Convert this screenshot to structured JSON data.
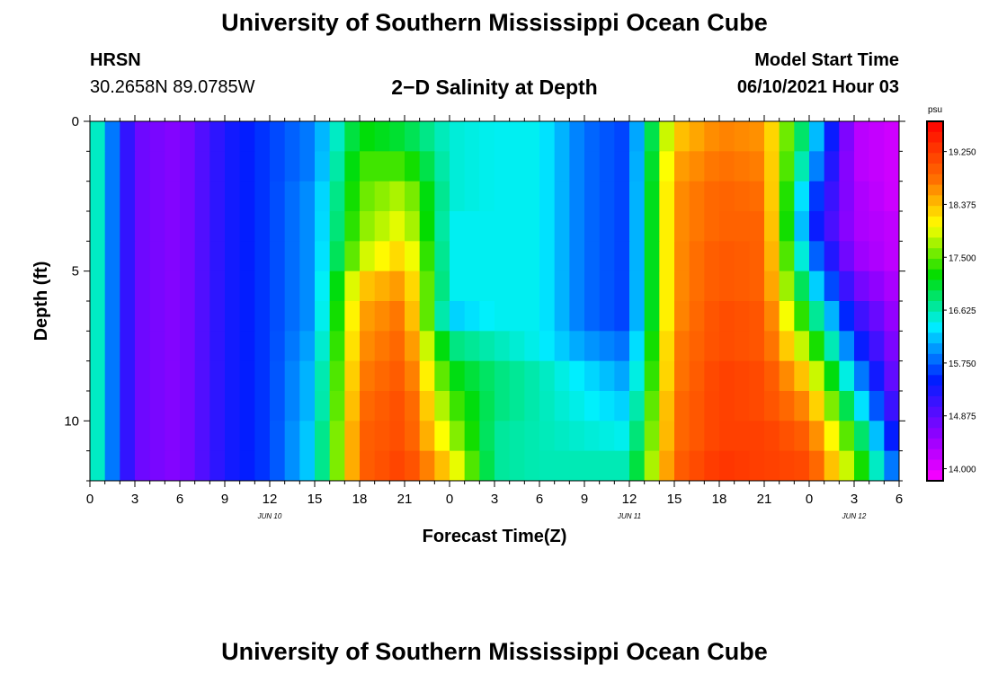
{
  "header": {
    "title": "University of Southern Mississippi Ocean Cube",
    "station": "HRSN",
    "coordinates": "30.2658N  89.0785W",
    "plot_title": "2−D Salinity at Depth",
    "model_label": "Model Start Time",
    "model_time": "06/10/2021 Hour 03"
  },
  "footer": {
    "title": "University of Southern Mississippi Ocean Cube"
  },
  "chart_data": {
    "type": "heatmap",
    "title": "2-D Salinity at Depth",
    "xlabel": "Forecast Time(Z)",
    "ylabel": "Depth (ft)",
    "x_range_hours": [
      0,
      54
    ],
    "y_range_ft": [
      0,
      12
    ],
    "x_tick_labels": [
      "0",
      "3",
      "6",
      "9",
      "12",
      "15",
      "18",
      "21",
      "0",
      "3",
      "6",
      "9",
      "12",
      "15",
      "18",
      "21",
      "0",
      "3",
      "6"
    ],
    "y_tick_labels": [
      "0",
      "5",
      "10"
    ],
    "y_tick_values": [
      0,
      5,
      10
    ],
    "date_labels": [
      {
        "label": "JUN 10",
        "hour": 12
      },
      {
        "label": "JUN 11",
        "hour": 36
      },
      {
        "label": "JUN 12",
        "hour": 51
      }
    ],
    "colorbar": {
      "unit": "psu",
      "min": 13.8,
      "max": 19.75,
      "labels": [
        "19.250",
        "18.375",
        "17.500",
        "16.625",
        "15.750",
        "14.875",
        "14.000"
      ],
      "label_values": [
        19.25,
        18.375,
        17.5,
        16.625,
        15.75,
        14.875,
        14.0
      ]
    },
    "depths_ft": [
      0.5,
      1.5,
      2.5,
      3.5,
      4.5,
      5.5,
      6.5,
      7.5,
      8.5,
      9.5,
      10.5,
      11.5
    ],
    "hours": [
      0,
      3,
      6,
      9,
      12,
      15,
      18,
      21,
      24,
      27,
      30,
      33,
      36,
      39,
      42,
      45,
      48,
      51,
      54
    ],
    "salinity_psu": [
      [
        16.9,
        14.8,
        14.6,
        15.3,
        15.6,
        15.9,
        17.2,
        17.0,
        16.5,
        16.4,
        16.4,
        15.8,
        15.6,
        18.3,
        18.7,
        18.6,
        16.5,
        14.3,
        14.1
      ],
      [
        16.9,
        14.8,
        14.6,
        15.3,
        15.6,
        15.9,
        17.4,
        17.4,
        16.5,
        16.4,
        16.4,
        15.8,
        15.6,
        18.5,
        18.8,
        18.7,
        16.2,
        14.3,
        14.1
      ],
      [
        16.9,
        14.8,
        14.6,
        15.3,
        15.6,
        16.0,
        17.5,
        17.8,
        16.5,
        16.4,
        16.4,
        15.8,
        15.6,
        18.6,
        18.9,
        18.8,
        15.8,
        14.4,
        14.1
      ],
      [
        16.9,
        14.8,
        14.6,
        15.3,
        15.6,
        16.0,
        17.6,
        18.0,
        16.4,
        16.4,
        16.4,
        15.8,
        15.6,
        18.6,
        18.9,
        18.9,
        15.6,
        14.4,
        14.2
      ],
      [
        16.9,
        14.8,
        14.6,
        15.3,
        15.6,
        16.0,
        17.8,
        18.3,
        16.4,
        16.4,
        16.4,
        15.8,
        15.6,
        18.6,
        19.0,
        18.9,
        16.0,
        14.5,
        14.2
      ],
      [
        16.9,
        14.8,
        14.6,
        15.3,
        15.6,
        16.0,
        18.3,
        18.6,
        16.4,
        16.4,
        16.4,
        15.8,
        15.6,
        18.6,
        19.0,
        18.9,
        16.5,
        14.8,
        14.3
      ],
      [
        16.9,
        14.8,
        14.6,
        15.3,
        15.6,
        16.0,
        18.5,
        18.8,
        16.2,
        16.4,
        16.4,
        15.8,
        15.6,
        18.6,
        19.1,
        19.0,
        17.0,
        15.2,
        14.4
      ],
      [
        16.9,
        14.8,
        14.6,
        15.3,
        15.6,
        16.1,
        18.6,
        18.9,
        16.8,
        16.6,
        16.4,
        16.0,
        15.8,
        18.7,
        19.1,
        19.0,
        17.6,
        15.6,
        14.5
      ],
      [
        16.9,
        14.8,
        14.6,
        15.3,
        15.6,
        16.2,
        18.7,
        19.0,
        17.2,
        16.8,
        16.6,
        16.3,
        16.0,
        18.7,
        19.2,
        19.1,
        18.2,
        16.1,
        14.6
      ],
      [
        16.9,
        14.8,
        14.6,
        15.3,
        15.6,
        16.2,
        18.8,
        19.1,
        17.5,
        16.8,
        16.6,
        16.4,
        16.2,
        18.8,
        19.2,
        19.1,
        18.6,
        16.6,
        14.8
      ],
      [
        16.9,
        14.8,
        14.6,
        15.3,
        15.6,
        16.3,
        18.9,
        19.1,
        17.8,
        16.7,
        16.6,
        16.5,
        16.4,
        18.8,
        19.2,
        19.2,
        18.9,
        17.2,
        15.1
      ],
      [
        16.9,
        14.8,
        14.6,
        15.3,
        15.6,
        16.3,
        18.9,
        19.2,
        18.2,
        16.7,
        16.6,
        16.6,
        16.6,
        18.9,
        19.3,
        19.2,
        19.1,
        17.6,
        15.5
      ]
    ]
  }
}
